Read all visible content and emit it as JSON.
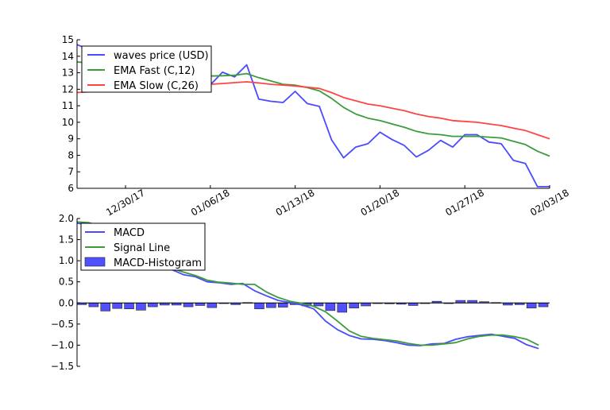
{
  "chart_data": [
    {
      "type": "line",
      "title": "",
      "xlabel": "",
      "ylabel": "",
      "ylim": [
        6,
        15
      ],
      "yticks": [
        "6",
        "7",
        "8",
        "9",
        "10",
        "11",
        "12",
        "13",
        "14",
        "15"
      ],
      "xtick_labels": [
        "12/30/17",
        "01/06/18",
        "01/13/18",
        "01/20/18",
        "01/27/18",
        "02/03/18"
      ],
      "xtick_index": [
        4,
        11,
        18,
        25,
        32,
        39
      ],
      "legend_position": "upper-left",
      "series": [
        {
          "name": "waves price (USD)",
          "color": "#4a4aff",
          "values": [
            14.7,
            14.4,
            13.8,
            13.3,
            12.9,
            13.0,
            12.5,
            12.7,
            12.2,
            12.4,
            12.1,
            12.26,
            13.03,
            12.75,
            13.48,
            11.4,
            11.27,
            11.2,
            11.87,
            11.13,
            10.96,
            8.94,
            7.85,
            8.5,
            8.7,
            9.4,
            8.95,
            8.6,
            7.9,
            8.3,
            8.9,
            8.5,
            9.25,
            9.25,
            8.8,
            8.7,
            7.7,
            7.5,
            6.1,
            6.1
          ]
        },
        {
          "name": "EMA Fast (C,12)",
          "color": "#3c9c3c",
          "values": [
            13.65,
            13.6,
            13.55,
            13.45,
            13.35,
            13.3,
            13.2,
            13.1,
            13.0,
            12.95,
            12.85,
            12.8,
            12.82,
            12.85,
            12.95,
            12.7,
            12.5,
            12.3,
            12.25,
            12.1,
            11.9,
            11.45,
            10.9,
            10.5,
            10.25,
            10.1,
            9.9,
            9.7,
            9.45,
            9.3,
            9.25,
            9.15,
            9.15,
            9.15,
            9.1,
            9.05,
            8.85,
            8.65,
            8.25,
            7.95
          ]
        },
        {
          "name": "EMA Slow (C,26)",
          "color": "#ff4444",
          "values": [
            11.8,
            11.85,
            11.95,
            12.0,
            12.05,
            12.1,
            12.15,
            12.2,
            12.22,
            12.25,
            12.28,
            12.3,
            12.35,
            12.4,
            12.45,
            12.38,
            12.3,
            12.25,
            12.2,
            12.12,
            12.05,
            11.8,
            11.5,
            11.3,
            11.1,
            11.0,
            10.85,
            10.7,
            10.5,
            10.35,
            10.25,
            10.1,
            10.05,
            10.0,
            9.9,
            9.8,
            9.65,
            9.5,
            9.25,
            9.0
          ]
        }
      ]
    },
    {
      "type": "line",
      "title": "",
      "xlabel": "",
      "ylabel": "",
      "ylim": [
        -1.5,
        2.0
      ],
      "yticks": [
        "2.0",
        "1.5",
        "1.0",
        "0.5",
        "0.0",
        "−0.5",
        "−1.0",
        "−1.5"
      ],
      "ytick_values": [
        2.0,
        1.5,
        1.0,
        0.5,
        0.0,
        -0.5,
        -1.0,
        -1.5
      ],
      "legend_position": "upper-left",
      "series": [
        {
          "name": "MACD",
          "color": "#4a4aff",
          "values": [
            1.89,
            1.85,
            1.62,
            1.45,
            1.3,
            1.12,
            1.0,
            0.89,
            0.79,
            0.67,
            0.62,
            0.5,
            0.48,
            0.44,
            0.46,
            0.29,
            0.17,
            0.06,
            0.01,
            -0.05,
            -0.14,
            -0.43,
            -0.63,
            -0.77,
            -0.85,
            -0.86,
            -0.89,
            -0.94,
            -1.0,
            -1.01,
            -0.97,
            -0.96,
            -0.86,
            -0.8,
            -0.77,
            -0.74,
            -0.79,
            -0.84,
            -0.99,
            -1.08
          ]
        },
        {
          "name": "Signal Line",
          "color": "#3c9c3c",
          "values": [
            1.92,
            1.9,
            1.82,
            1.63,
            1.48,
            1.33,
            1.12,
            0.95,
            0.82,
            0.73,
            0.65,
            0.54,
            0.49,
            0.47,
            0.44,
            0.44,
            0.26,
            0.13,
            0.04,
            -0.01,
            -0.08,
            -0.21,
            -0.43,
            -0.66,
            -0.79,
            -0.84,
            -0.87,
            -0.9,
            -0.96,
            -1.0,
            -1.0,
            -0.97,
            -0.94,
            -0.85,
            -0.79,
            -0.76,
            -0.76,
            -0.8,
            -0.86,
            -1.0
          ]
        },
        {
          "name": "MACD-Histogram",
          "type": "bar",
          "color": "#5050ff",
          "values": [
            -0.04,
            -0.09,
            -0.19,
            -0.13,
            -0.14,
            -0.17,
            -0.09,
            -0.05,
            -0.05,
            -0.09,
            -0.06,
            -0.11,
            -0.01,
            -0.04,
            0.01,
            -0.14,
            -0.11,
            -0.1,
            -0.04,
            -0.07,
            -0.07,
            -0.18,
            -0.22,
            -0.12,
            -0.07,
            0.0,
            -0.02,
            -0.03,
            -0.06,
            -0.01,
            0.04,
            0.0,
            0.06,
            0.06,
            0.03,
            0.01,
            -0.05,
            -0.04,
            -0.12,
            -0.09
          ]
        }
      ]
    }
  ]
}
